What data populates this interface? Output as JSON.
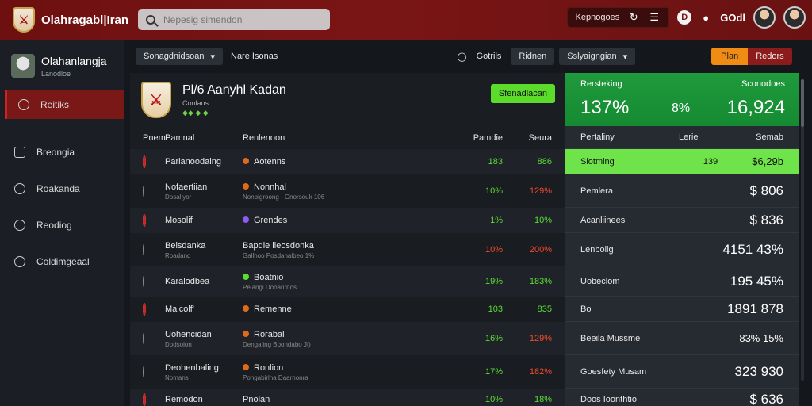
{
  "app": {
    "title": "Olahragabl|Iran"
  },
  "search": {
    "placeholder": "Nepesig simendon"
  },
  "top": {
    "notif_label": "Kepnogoes",
    "wallet_label": "GOdl"
  },
  "sidebar": {
    "profile_name": "Olahanlangja",
    "profile_sub": "Lanodloe",
    "items": [
      {
        "label": "Reitiks",
        "icon": "chat-icon"
      },
      {
        "label": "Breongia",
        "icon": "calendar-icon"
      },
      {
        "label": "Roakanda",
        "icon": "shield-icon"
      },
      {
        "label": "Reodiog",
        "icon": "user-icon"
      },
      {
        "label": "Coldimgeaal",
        "icon": "gear-icon"
      }
    ]
  },
  "subbar": {
    "filter_label": "Sonagdnidsoan",
    "tab_label": "Nare Isonas",
    "option1": "Gotrils",
    "option2": "Ridnen",
    "dropdown_label": "Sslyaigngian",
    "orange_btn": "Plan",
    "red_btn": "Redors"
  },
  "team": {
    "title": "Pl/6 Aanyhl Kadan",
    "subtitle": "Conlans",
    "dots": "◆◆ ◆ ◆",
    "action": "Sfenadlacan"
  },
  "table": {
    "headers": [
      "Pnem",
      "Pamnal",
      "Renlenoon",
      "Pamdie",
      "Seura"
    ],
    "rows": [
      {
        "player": "Parlanoodaing",
        "sub": "",
        "role": "Aotenns",
        "role_sub": "",
        "v1": "183",
        "v2": "886",
        "c1": "green",
        "c2": "green"
      },
      {
        "player": "Nofaertiian",
        "sub": "Dosaliyor",
        "role": "Nonnhal",
        "role_sub": "Nonbigroong - Gnorsouk 106",
        "v1": "10%",
        "v2": "129%",
        "c1": "green",
        "c2": "red"
      },
      {
        "player": "Mosolif",
        "sub": "",
        "role": "Grendes",
        "role_sub": "",
        "v1": "1%",
        "v2": "10%",
        "c1": "green",
        "c2": "green"
      },
      {
        "player": "Belsdanka",
        "sub": "Roadand",
        "role": "Bapdie lleosdonka",
        "role_sub": "Gallhoo Posdanalbeo 1%",
        "v1": "10%",
        "v2": "200%",
        "c1": "red",
        "c2": "red"
      },
      {
        "player": "Karalodbea",
        "sub": "",
        "role": "Boatnio",
        "role_sub": "Pelarigi Dooarirnos",
        "v1": "19%",
        "v2": "183%",
        "c1": "green",
        "c2": "green"
      },
      {
        "player": "Malcolf'",
        "sub": "",
        "role": "Remenne",
        "role_sub": "",
        "v1": "103",
        "v2": "835",
        "c1": "green",
        "c2": "green"
      },
      {
        "player": "Uohencidan",
        "sub": "Dodsoion",
        "role": "Rorabal",
        "role_sub": "Dengaling Boondabo Jt)",
        "v1": "16%",
        "v2": "129%",
        "c1": "green",
        "c2": "red"
      },
      {
        "player": "Deohenbaling",
        "sub": "Nomans",
        "role": "Ronlion",
        "role_sub": "Pongabirlna Daarnonra",
        "v1": "17%",
        "v2": "182%",
        "c1": "green",
        "c2": "red"
      },
      {
        "player": "Remodon",
        "sub": "",
        "role": "Pnolan",
        "role_sub": "",
        "v1": "10%",
        "v2": "18%",
        "c1": "green",
        "c2": "green"
      }
    ]
  },
  "stats": {
    "top_left_label": "Rersteking",
    "top_right_label": "Sconodoes",
    "big_left": "137%",
    "big_mid": "8%",
    "big_right": "16,924",
    "headers": [
      "Pertaliny",
      "Lerie",
      "Semab"
    ],
    "rows": [
      {
        "name": "Slotming",
        "mid": "139",
        "val": "$6,29b",
        "hl": true
      },
      {
        "name": "Pemlera",
        "mid": "",
        "val": "$ 806",
        "hl": false
      },
      {
        "name": "Acanliinees",
        "mid": "",
        "val": "$ 836",
        "hl": false
      },
      {
        "name": "Lenbolig",
        "mid": "",
        "val": "4151  43%",
        "hl": false
      },
      {
        "name": "Uobeclom",
        "mid": "",
        "val": "195  45%",
        "hl": false
      },
      {
        "name": "Bo",
        "mid": "",
        "val": "1891  878",
        "hl": false
      },
      {
        "name": "Beeila Mussme",
        "mid": "",
        "val": "83%  15%",
        "hl": false
      },
      {
        "name": "Goesfety Musam",
        "mid": "",
        "val": "323  930",
        "hl": false
      },
      {
        "name": "Doos Ioonthtio",
        "mid": "",
        "val": "$  636",
        "hl": false
      }
    ]
  },
  "colors": {
    "topbar": "#6e1010",
    "green": "#5cdc33",
    "red": "#f04a2a",
    "orange": "#f08c14",
    "highlight": "#6fe34a"
  }
}
